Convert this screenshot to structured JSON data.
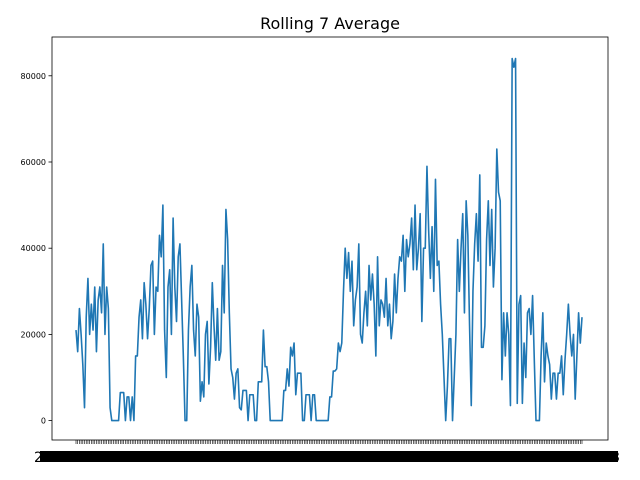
{
  "chart_data": {
    "type": "line",
    "title": "Rolling 7 Average",
    "xlabel": "",
    "ylabel": "",
    "ylim": [
      -4500,
      89000
    ],
    "y_ticks": [
      0,
      20000,
      40000,
      60000,
      80000
    ],
    "y_tick_labels": [
      "0",
      "20000",
      "40000",
      "60000",
      "80000"
    ],
    "x_tick_labels_note": "dense overlapping date tick labels (unreadable)",
    "x_tick_blob_left": "2",
    "x_tick_blob_right": "3",
    "grid": false,
    "legend": "none",
    "line_color": "#1f77b4",
    "series": [
      {
        "values": [
          21000,
          16000,
          26000,
          20000,
          13000,
          3000,
          24000,
          33000,
          20000,
          27000,
          21000,
          31000,
          16000,
          28000,
          31000,
          25000,
          41000,
          20000,
          31000,
          26000,
          3000,
          0,
          0,
          0,
          0,
          0,
          6500,
          6500,
          6500,
          0,
          5500,
          5500,
          0,
          5500,
          0,
          15000,
          15000,
          24000,
          28000,
          19000,
          32000,
          27000,
          19000,
          26000,
          36000,
          37000,
          20000,
          31000,
          30000,
          43000,
          38000,
          50000,
          21000,
          10000,
          31000,
          35000,
          20000,
          47000,
          31000,
          23000,
          38000,
          41000,
          28000,
          15000,
          0,
          0,
          21000,
          31000,
          36000,
          21000,
          15000,
          27000,
          24000,
          4500,
          9000,
          5500,
          20000,
          23000,
          8500,
          17000,
          32000,
          22000,
          14000,
          26000,
          14000,
          16000,
          36000,
          25000,
          49000,
          42000,
          25000,
          12000,
          10000,
          5000,
          11000,
          12000,
          3000,
          2500,
          7000,
          7000,
          7000,
          0,
          6000,
          6000,
          6000,
          0,
          0,
          9000,
          9000,
          9000,
          21000,
          12500,
          12500,
          9000,
          0,
          0,
          0,
          0,
          0,
          0,
          0,
          0,
          7000,
          7000,
          12000,
          8000,
          17000,
          15000,
          18000,
          6000,
          11000,
          11000,
          11000,
          0,
          0,
          6000,
          6000,
          6000,
          0,
          6000,
          6000,
          0,
          0,
          0,
          0,
          0,
          0,
          0,
          0,
          5500,
          5500,
          11500,
          11500,
          12000,
          18000,
          16000,
          18000,
          30000,
          40000,
          33000,
          39000,
          30000,
          37000,
          22000,
          28000,
          31000,
          41000,
          20000,
          18000,
          25000,
          30000,
          22000,
          36000,
          28000,
          34000,
          27000,
          15000,
          38000,
          22000,
          28000,
          27000,
          24000,
          33000,
          22000,
          27000,
          19000,
          23000,
          34000,
          25000,
          33000,
          38000,
          37000,
          43000,
          30000,
          42000,
          38000,
          41000,
          47000,
          35000,
          50000,
          35000,
          40000,
          48000,
          23000,
          40000,
          40000,
          59000,
          44000,
          33000,
          45000,
          30000,
          56000,
          36000,
          37000,
          27000,
          20000,
          10000,
          0,
          8000,
          19000,
          19000,
          0,
          10000,
          20000,
          42000,
          30000,
          40000,
          48000,
          25000,
          51000,
          43000,
          22000,
          3500,
          30000,
          41000,
          48000,
          37000,
          57000,
          17000,
          17000,
          22000,
          42000,
          51000,
          36000,
          49000,
          31000,
          40000,
          63000,
          53000,
          51000,
          9500,
          25000,
          15000,
          25000,
          20000,
          3500,
          84000,
          82000,
          84000,
          4000,
          27000,
          29000,
          4000,
          18000,
          10000,
          25000,
          26000,
          20000,
          29000,
          14000,
          0,
          0,
          0,
          15000,
          25000,
          9000,
          18000,
          15000,
          13000,
          5000,
          11000,
          11000,
          5000,
          11000,
          11000,
          15000,
          6000,
          14000,
          20000,
          27000,
          20000,
          15000,
          20000,
          5000,
          15000,
          25000,
          18000,
          24000
        ]
      }
    ]
  }
}
